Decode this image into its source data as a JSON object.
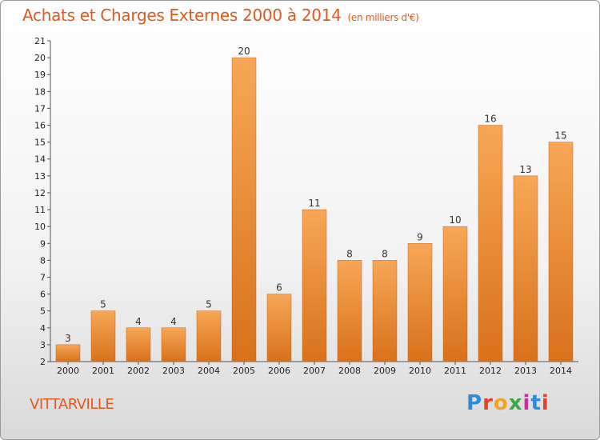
{
  "header": {
    "title": "Achats et Charges Externes 2000 à 2014",
    "unit": "(en milliers d'€)"
  },
  "footer": {
    "commune": "VITTARVILLE",
    "logo_text": "Proxiti",
    "logo_colors": [
      "#2e8bd8",
      "#e0452b",
      "#f2a31f",
      "#3aa845",
      "#c62fa0",
      "#2e8bd8",
      "#e0452b"
    ]
  },
  "colors": {
    "bar_light": "#f7a756",
    "bar_dark": "#d8711a",
    "title": "#e05a20"
  },
  "chart_data": {
    "type": "bar",
    "categories": [
      "2000",
      "2001",
      "2002",
      "2003",
      "2004",
      "2005",
      "2006",
      "2007",
      "2008",
      "2009",
      "2010",
      "2011",
      "2012",
      "2013",
      "2014"
    ],
    "values": [
      3,
      5,
      4,
      4,
      5,
      20,
      6,
      11,
      8,
      8,
      9,
      10,
      16,
      13,
      15
    ],
    "title": "Achats et Charges Externes 2000 à 2014",
    "ylim": [
      2,
      21
    ],
    "yticks": [
      2,
      3,
      4,
      5,
      6,
      7,
      8,
      9,
      10,
      11,
      12,
      13,
      14,
      15,
      16,
      17,
      18,
      19,
      20,
      21
    ],
    "grid": false,
    "legend": "none"
  }
}
